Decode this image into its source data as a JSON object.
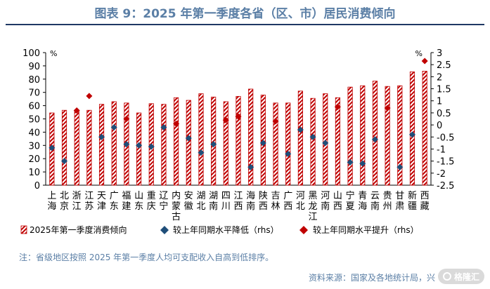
{
  "title": "图表 9：2025 年第一季度各省（区、市）居民消费倾向",
  "footnote": "注：省级地区按照 2025 年第一季度人均可支配收入自高到低排序。",
  "source": "资料来源：国家及各地统计局，兴",
  "watermark": "格隆汇",
  "colors": {
    "bar": "#c00000",
    "dec": "#1f4e79",
    "inc": "#c00000",
    "title": "#5b7fa6"
  },
  "chart_data": {
    "type": "bar",
    "categories": [
      "上海",
      "北京",
      "浙江",
      "江苏",
      "天津",
      "广东",
      "福建",
      "山东",
      "重庆",
      "辽宁",
      "内蒙古",
      "安徽",
      "湖北",
      "湖南",
      "四川",
      "江西",
      "海南",
      "陕西",
      "吉林",
      "广西",
      "河北",
      "黑龙江",
      "河南",
      "山西",
      "宁夏",
      "青海",
      "云南",
      "贵州",
      "甘肃",
      "新疆",
      "西藏"
    ],
    "left_axis": {
      "unit": "%",
      "ylim": [
        0,
        100
      ],
      "ticks": [
        0,
        10,
        20,
        30,
        40,
        50,
        60,
        70,
        80,
        90,
        100
      ]
    },
    "right_axis": {
      "unit": "%",
      "ylim": [
        -2.5,
        3
      ],
      "ticks": [
        -2.5,
        -2,
        -1.5,
        -1,
        -0.5,
        0,
        0.5,
        1,
        1.5,
        2,
        2.5,
        3
      ]
    },
    "series": [
      {
        "name": "2025年第一季度消费倾向",
        "type": "bar",
        "axis": "left",
        "values": [
          54.5,
          56.5,
          56,
          56.5,
          61,
          63,
          62,
          54.5,
          61.5,
          61,
          66,
          64,
          69,
          66.5,
          63,
          67,
          72.5,
          68,
          62,
          62,
          71,
          65.5,
          69,
          66,
          74,
          75,
          78.5,
          74.5,
          75,
          85.5,
          86
        ]
      },
      {
        "name": "较上年同期水平降低（rhs）",
        "type": "scatter",
        "axis": "right",
        "marker": "diamond",
        "values": [
          -0.95,
          -1.5,
          null,
          null,
          -0.5,
          -0.1,
          -0.8,
          -0.85,
          -0.9,
          -0.1,
          null,
          -0.55,
          -1.15,
          -0.8,
          null,
          null,
          -1.75,
          -0.75,
          null,
          -1.2,
          -0.2,
          -0.5,
          -0.75,
          null,
          -1.55,
          -1.6,
          -0.6,
          null,
          -1.75,
          -0.4,
          null
        ]
      },
      {
        "name": "较上年同期水平提升（rhs）",
        "type": "scatter",
        "axis": "right",
        "marker": "diamond",
        "values": [
          null,
          null,
          0.6,
          1.2,
          null,
          null,
          0.25,
          null,
          null,
          null,
          0.05,
          null,
          null,
          null,
          0.2,
          0.35,
          null,
          null,
          0.15,
          null,
          null,
          null,
          null,
          0.75,
          null,
          null,
          null,
          0.7,
          null,
          null,
          2.65
        ]
      }
    ]
  }
}
